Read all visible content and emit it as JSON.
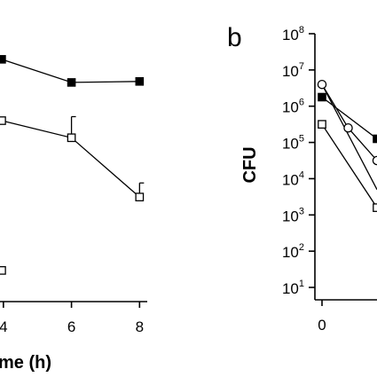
{
  "chart_data": [
    {
      "panel": "a",
      "type": "line",
      "xlabel_visible": "me (h)",
      "x_ticks": [
        "4",
        "6",
        "8"
      ],
      "x_tick_values": [
        4,
        6,
        8
      ],
      "xlim": [
        3.9,
        8.2
      ],
      "ylim": [
        0,
        300
      ],
      "series": [
        {
          "marker": "filled-square",
          "x": [
            3.95,
            6,
            8
          ],
          "y": [
            241,
            218,
            219
          ],
          "error_bars": false
        },
        {
          "marker": "open-square",
          "x": [
            3.95,
            6,
            8
          ],
          "y": [
            180,
            163,
            104
          ],
          "error_upper": [
            0,
            21,
            14
          ]
        },
        {
          "marker": "open-square",
          "x": [
            3.95
          ],
          "y": [
            31
          ],
          "error_bars": false
        }
      ]
    },
    {
      "panel": "b",
      "type": "line",
      "panel_letter": "b",
      "ylabel": "CFU",
      "yscale": "log",
      "ylim_exponent": [
        1,
        8
      ],
      "y_ticks": [
        {
          "base": "10",
          "exp": "8"
        },
        {
          "base": "10",
          "exp": "7"
        },
        {
          "base": "10",
          "exp": "6"
        },
        {
          "base": "10",
          "exp": "5"
        },
        {
          "base": "10",
          "exp": "4"
        },
        {
          "base": "10",
          "exp": "3"
        },
        {
          "base": "10",
          "exp": "2"
        },
        {
          "base": "10",
          "exp": "1"
        }
      ],
      "y_tick_exponents": [
        8,
        7,
        6,
        5,
        4,
        3,
        2,
        1
      ],
      "x_ticks": [
        "0"
      ],
      "x_tick_values": [
        0
      ],
      "xlim": [
        0,
        2.1
      ],
      "series": [
        {
          "marker": "open-circle",
          "x": [
            0,
            1,
            2.1
          ],
          "y_exponent": [
            6.6,
            5.4,
            4.5
          ]
        },
        {
          "marker": "filled-square",
          "x": [
            0,
            2.1
          ],
          "y_exponent": [
            6.25,
            5.1
          ]
        },
        {
          "marker": "open-square",
          "x": [
            0,
            2.1
          ],
          "y_exponent": [
            5.5,
            3.2
          ]
        },
        {
          "marker": "none",
          "x": [
            0,
            2.1
          ],
          "y_exponent": [
            6.6,
            3.7
          ]
        }
      ]
    }
  ]
}
